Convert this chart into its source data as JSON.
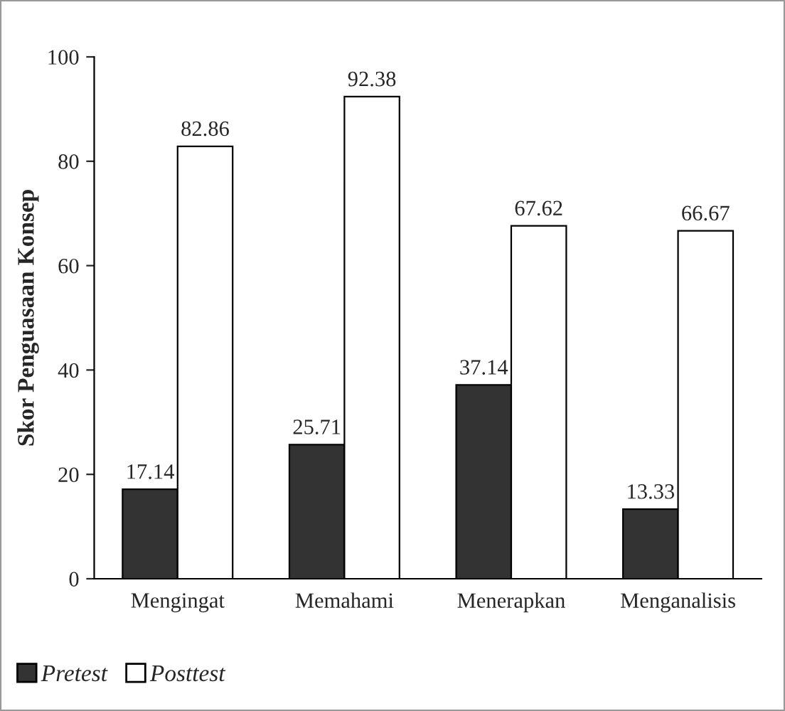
{
  "chart_data": {
    "type": "bar",
    "ylabel": "Skor Penguasaan Konsep",
    "categories": [
      "Mengingat",
      "Memahami",
      "Menerapkan",
      "Menganalisis"
    ],
    "series": [
      {
        "name": "Pretest",
        "color": "#333333",
        "values": [
          17.14,
          25.71,
          37.14,
          13.33
        ]
      },
      {
        "name": "Posttest",
        "color": "#ffffff",
        "values": [
          82.86,
          92.38,
          67.62,
          66.67
        ]
      }
    ],
    "ylim": [
      0,
      100
    ],
    "yticks": [
      0,
      20,
      40,
      60,
      80,
      100
    ],
    "data_labels": true,
    "grid": false,
    "legend": "bottom left"
  }
}
